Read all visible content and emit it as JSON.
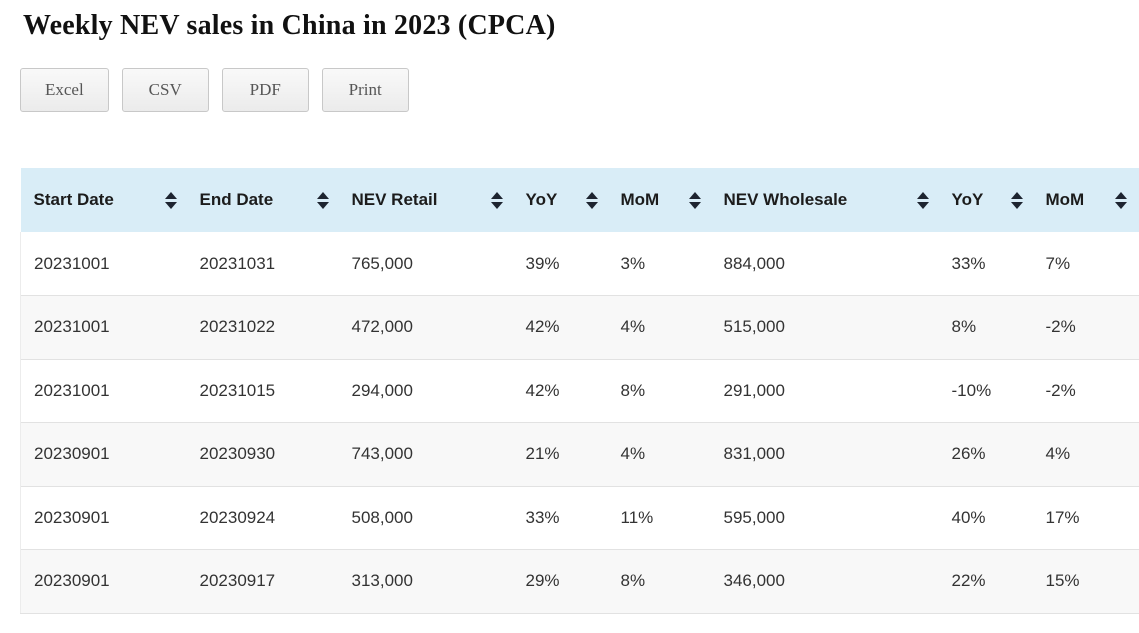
{
  "page": {
    "title": "Weekly NEV sales in China in 2023 (CPCA)"
  },
  "toolbar": {
    "buttons": [
      "Excel",
      "CSV",
      "PDF",
      "Print"
    ]
  },
  "table": {
    "columns": [
      "Start Date",
      "End Date",
      "NEV Retail",
      "YoY",
      "MoM",
      "NEV Wholesale",
      "YoY",
      "MoM"
    ],
    "rows": [
      [
        "20231001",
        "20231031",
        "765,000",
        "39%",
        "3%",
        "884,000",
        "33%",
        "7%"
      ],
      [
        "20231001",
        "20231022",
        "472,000",
        "42%",
        "4%",
        "515,000",
        "8%",
        "-2%"
      ],
      [
        "20231001",
        "20231015",
        "294,000",
        "42%",
        "8%",
        "291,000",
        "-10%",
        "-2%"
      ],
      [
        "20230901",
        "20230930",
        "743,000",
        "21%",
        "4%",
        "831,000",
        "26%",
        "4%"
      ],
      [
        "20230901",
        "20230924",
        "508,000",
        "33%",
        "11%",
        "595,000",
        "40%",
        "17%"
      ],
      [
        "20230901",
        "20230917",
        "313,000",
        "29%",
        "8%",
        "346,000",
        "22%",
        "15%"
      ]
    ]
  },
  "colors": {
    "header_bg": "#d9edf7",
    "stripe_bg": "#f8f8f8",
    "row_border": "#e2e2e2",
    "sort_icon": "#1d2430",
    "title_text": "#111111",
    "button_text": "#565656"
  },
  "icons": {
    "sort": "sort-both-icon"
  }
}
